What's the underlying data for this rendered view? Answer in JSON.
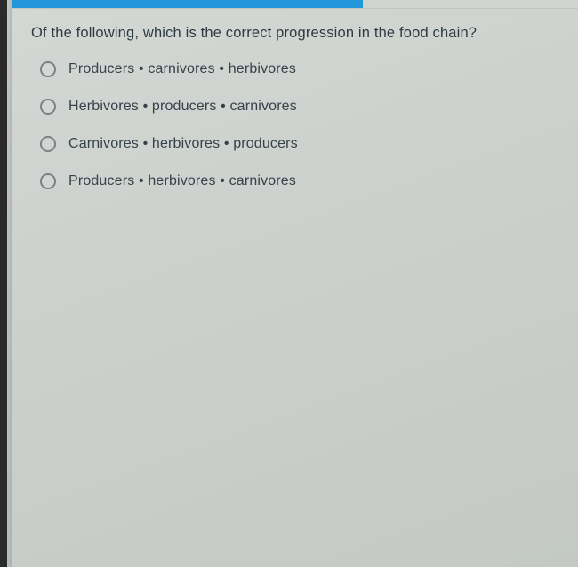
{
  "progress": {
    "fill_percent": 62,
    "fill_color": "#2196d8",
    "bg_color": "#d0d4d0"
  },
  "question": {
    "text": "Of the following, which is the correct progression in the food chain?"
  },
  "options": [
    {
      "label": "Producers • carnivores • herbivores"
    },
    {
      "label": "Herbivores • producers • carnivores"
    },
    {
      "label": "Carnivores • herbivores • producers"
    },
    {
      "label": "Producers • herbivores • carnivores"
    }
  ],
  "colors": {
    "panel_bg_start": "#d4d8d4",
    "panel_bg_end": "#c4c9c5",
    "text_primary": "#2e3a42",
    "text_option": "#36424a",
    "radio_border": "#7a8288",
    "dark_edge": "#2a2a2a"
  },
  "typography": {
    "question_fontsize": 16.5,
    "question_weight": 500,
    "option_fontsize": 16,
    "option_weight": 400
  }
}
